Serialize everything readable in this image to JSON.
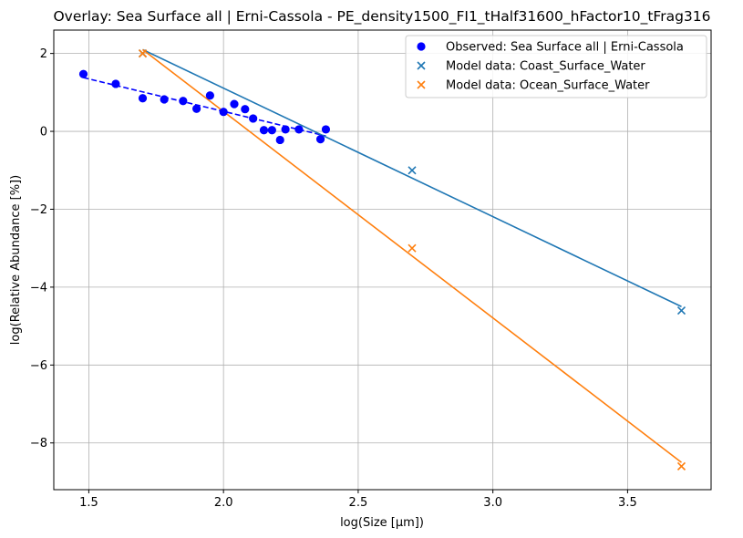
{
  "chart_data": {
    "type": "scatter",
    "title": "Overlay: Sea Surface all | Erni-Cassola - PE_density1500_FI1_tHalf31600_hFactor10_tFrag316",
    "xlabel": "log(Size [µm])",
    "ylabel": "log(Relative Abundance [%])",
    "xlim": [
      1.37,
      3.81
    ],
    "ylim": [
      -9.2,
      2.6
    ],
    "xticks": [
      1.5,
      2.0,
      2.5,
      3.0,
      3.5
    ],
    "xtick_labels": [
      "1.5",
      "2.0",
      "2.5",
      "3.0",
      "3.5"
    ],
    "yticks": [
      -8,
      -6,
      -4,
      -2,
      0,
      2
    ],
    "ytick_labels": [
      "−8",
      "−6",
      "−4",
      "−2",
      "0",
      "2"
    ],
    "grid": true,
    "legend_position": "top-right",
    "colors": {
      "observed": "#0000ff",
      "coast": "#1f77b4",
      "ocean": "#ff7f0e"
    },
    "series": [
      {
        "name": "Observed: Sea Surface all | Erni-Cassola",
        "marker": "circle",
        "color": "#0000ff",
        "x": [
          1.48,
          1.6,
          1.7,
          1.78,
          1.85,
          1.9,
          1.95,
          2.0,
          2.04,
          2.08,
          2.11,
          2.15,
          2.18,
          2.21,
          2.23,
          2.28,
          2.36,
          2.38
        ],
        "y": [
          1.47,
          1.22,
          0.85,
          0.82,
          0.78,
          0.58,
          0.92,
          0.5,
          0.7,
          0.57,
          0.33,
          0.03,
          0.03,
          -0.22,
          0.05,
          0.05,
          -0.2,
          0.05
        ],
        "fit": {
          "x": [
            1.48,
            2.38
          ],
          "y": [
            1.38,
            -0.12
          ],
          "style": "dashed"
        }
      },
      {
        "name": "Model data: Coast_Surface_Water",
        "marker": "x",
        "color": "#1f77b4",
        "x": [
          1.7,
          2.7,
          3.7
        ],
        "y": [
          2.0,
          -1.0,
          -4.6
        ],
        "fit": {
          "x": [
            1.7,
            3.7
          ],
          "y": [
            2.1,
            -4.5
          ],
          "style": "solid"
        }
      },
      {
        "name": "Model data: Ocean_Surface_Water",
        "marker": "x",
        "color": "#ff7f0e",
        "x": [
          1.7,
          2.7,
          3.7
        ],
        "y": [
          2.0,
          -3.0,
          -8.6
        ],
        "fit": {
          "x": [
            1.7,
            3.7
          ],
          "y": [
            2.1,
            -8.5
          ],
          "style": "solid"
        }
      }
    ]
  }
}
